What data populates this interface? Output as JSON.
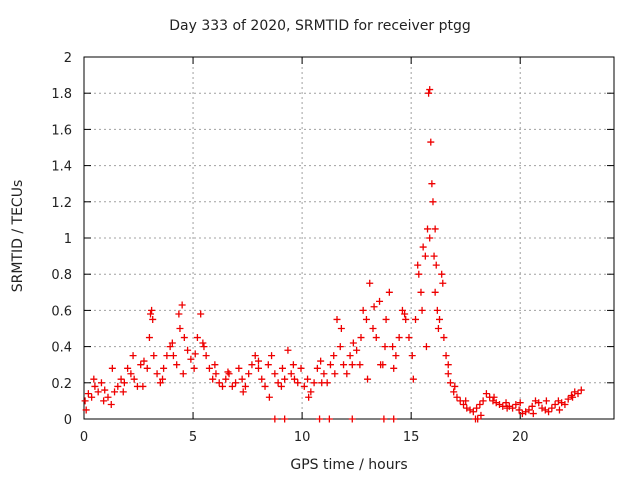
{
  "chart_data": {
    "type": "scatter",
    "title": "Day 333 of 2020, SRMTID for receiver ptgg",
    "xlabel": "GPS time / hours",
    "ylabel": "SRMTID / TECUs",
    "xlim": [
      0,
      24.3
    ],
    "ylim": [
      0,
      2
    ],
    "xticks": [
      0,
      5,
      10,
      15,
      20
    ],
    "xtick_labels": [
      "0",
      "5",
      "10",
      "15",
      "20"
    ],
    "yticks": [
      0,
      0.2,
      0.4,
      0.6,
      0.8,
      1,
      1.2,
      1.4,
      1.6,
      1.8,
      2
    ],
    "ytick_labels": [
      "0",
      "0.2",
      "0.4",
      "0.6",
      "0.8",
      "1",
      "1.2",
      "1.4",
      "1.6",
      "1.8",
      "2"
    ],
    "grid": true,
    "marker": "+",
    "series_color": "#ee0000",
    "series": [
      {
        "name": "SRMTID",
        "x": [
          0.05,
          0.2,
          0.35,
          0.5,
          0.65,
          0.8,
          0.95,
          1.1,
          1.25,
          1.4,
          1.55,
          1.7,
          1.85,
          2.0,
          2.15,
          2.3,
          2.45,
          2.6,
          2.75,
          2.9,
          3.0,
          3.05,
          3.1,
          3.2,
          3.35,
          3.5,
          3.65,
          3.8,
          3.95,
          4.1,
          4.25,
          4.4,
          4.5,
          4.6,
          4.75,
          4.9,
          5.05,
          5.2,
          5.35,
          5.45,
          5.6,
          5.75,
          5.9,
          6.05,
          6.2,
          6.35,
          6.5,
          6.65,
          6.8,
          6.95,
          7.1,
          7.25,
          7.4,
          7.55,
          7.7,
          7.85,
          8.0,
          8.15,
          8.3,
          8.45,
          8.6,
          8.75,
          8.9,
          9.05,
          9.2,
          9.35,
          9.5,
          9.65,
          9.8,
          9.95,
          10.1,
          10.25,
          10.4,
          10.55,
          10.7,
          10.85,
          11.0,
          11.15,
          11.3,
          11.45,
          11.6,
          11.75,
          11.9,
          12.05,
          12.2,
          12.35,
          12.5,
          12.65,
          12.8,
          12.95,
          13.1,
          13.25,
          13.4,
          13.55,
          13.7,
          13.85,
          14.0,
          14.15,
          14.3,
          14.45,
          14.6,
          14.75,
          14.9,
          15.05,
          15.2,
          15.35,
          15.45,
          15.55,
          15.65,
          15.75,
          15.8,
          15.85,
          15.9,
          15.95,
          16.0,
          16.05,
          16.1,
          16.15,
          16.2,
          16.3,
          16.4,
          16.5,
          16.6,
          16.7,
          16.8,
          16.95,
          17.1,
          17.25,
          17.4,
          17.55,
          17.7,
          17.85,
          18.0,
          18.15,
          18.3,
          18.45,
          18.6,
          18.75,
          18.9,
          19.05,
          19.2,
          19.35,
          19.5,
          19.65,
          19.8,
          19.95,
          20.1,
          20.25,
          20.4,
          20.55,
          20.7,
          20.85,
          21.0,
          21.15,
          21.3,
          21.45,
          21.6,
          21.75,
          21.9,
          22.05,
          22.2,
          22.35,
          22.5,
          22.65,
          22.8,
          0.1,
          0.45,
          0.9,
          1.3,
          1.8,
          2.25,
          2.7,
          3.15,
          3.6,
          4.05,
          4.35,
          4.55,
          5.1,
          5.5,
          6.0,
          6.6,
          7.3,
          8.0,
          8.5,
          9.1,
          9.6,
          10.3,
          10.9,
          11.5,
          11.8,
          12.3,
          12.7,
          13.0,
          13.3,
          13.6,
          13.8,
          14.2,
          14.7,
          15.1,
          15.3,
          15.5,
          15.7,
          15.85,
          16.1,
          16.25,
          16.45,
          16.7,
          17.0,
          17.5,
          18.2,
          18.8,
          19.4,
          20.0,
          20.6,
          21.2,
          21.8,
          22.4,
          8.75,
          9.2,
          10.8,
          11.25,
          12.3,
          13.75,
          14.2,
          17.95,
          18.05
        ],
        "y": [
          0.1,
          0.14,
          0.12,
          0.18,
          0.15,
          0.2,
          0.16,
          0.12,
          0.08,
          0.15,
          0.18,
          0.22,
          0.2,
          0.28,
          0.25,
          0.22,
          0.18,
          0.3,
          0.32,
          0.28,
          0.45,
          0.58,
          0.6,
          0.35,
          0.25,
          0.2,
          0.28,
          0.35,
          0.4,
          0.35,
          0.3,
          0.5,
          0.63,
          0.45,
          0.38,
          0.33,
          0.28,
          0.45,
          0.58,
          0.42,
          0.35,
          0.28,
          0.22,
          0.25,
          0.2,
          0.18,
          0.22,
          0.25,
          0.18,
          0.2,
          0.28,
          0.22,
          0.18,
          0.25,
          0.3,
          0.35,
          0.28,
          0.22,
          0.18,
          0.3,
          0.35,
          0.25,
          0.2,
          0.18,
          0.22,
          0.38,
          0.25,
          0.22,
          0.2,
          0.28,
          0.18,
          0.22,
          0.15,
          0.2,
          0.28,
          0.32,
          0.25,
          0.2,
          0.3,
          0.35,
          0.55,
          0.4,
          0.3,
          0.25,
          0.35,
          0.42,
          0.38,
          0.3,
          0.6,
          0.55,
          0.75,
          0.5,
          0.45,
          0.65,
          0.3,
          0.55,
          0.7,
          0.4,
          0.35,
          0.45,
          0.6,
          0.55,
          0.45,
          0.35,
          0.55,
          0.8,
          0.7,
          0.95,
          0.9,
          1.05,
          1.8,
          1.82,
          1.53,
          1.3,
          1.2,
          0.9,
          1.05,
          0.85,
          0.6,
          0.55,
          0.8,
          0.45,
          0.35,
          0.25,
          0.2,
          0.15,
          0.12,
          0.1,
          0.08,
          0.06,
          0.05,
          0.04,
          0.06,
          0.08,
          0.1,
          0.14,
          0.12,
          0.1,
          0.09,
          0.08,
          0.07,
          0.09,
          0.07,
          0.06,
          0.08,
          0.05,
          0.03,
          0.04,
          0.05,
          0.07,
          0.1,
          0.09,
          0.06,
          0.05,
          0.04,
          0.06,
          0.08,
          0.1,
          0.09,
          0.08,
          0.11,
          0.13,
          0.15,
          0.14,
          0.16,
          0.05,
          0.22,
          0.1,
          0.28,
          0.15,
          0.35,
          0.18,
          0.55,
          0.22,
          0.42,
          0.58,
          0.25,
          0.36,
          0.4,
          0.3,
          0.26,
          0.15,
          0.32,
          0.12,
          0.28,
          0.3,
          0.12,
          0.2,
          0.25,
          0.5,
          0.3,
          0.45,
          0.22,
          0.62,
          0.3,
          0.4,
          0.28,
          0.58,
          0.22,
          0.85,
          0.6,
          0.4,
          1.0,
          0.7,
          0.5,
          0.75,
          0.3,
          0.18,
          0.1,
          0.02,
          0.12,
          0.06,
          0.09,
          0.03,
          0.1,
          0.05,
          0.12,
          0.0,
          0.0,
          0.0,
          0.0,
          0.0,
          0.0,
          0.0,
          0.0,
          0.0
        ]
      }
    ]
  }
}
